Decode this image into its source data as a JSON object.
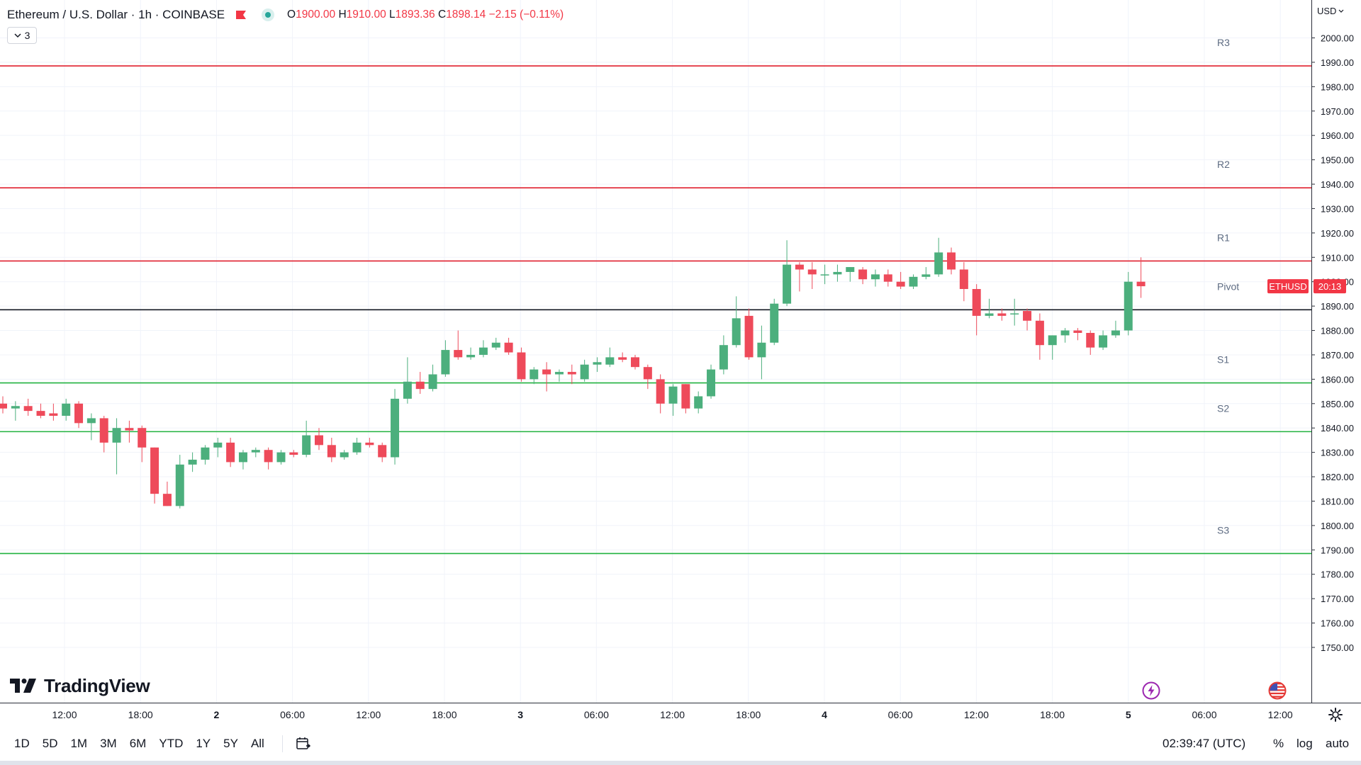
{
  "header": {
    "title": "Ethereum / U.S. Dollar · 1h · COINBASE",
    "ohlc": {
      "open_label": "O",
      "open": "1900.00",
      "high_label": "H",
      "high": "1910.00",
      "low_label": "L",
      "low": "1893.36",
      "close_label": "C",
      "close": "1898.14",
      "change": "−2.15 (−0.11%)"
    },
    "indicator_count": "3"
  },
  "price_scale": {
    "currency": "USD",
    "symbol_tag": "ETHUSD",
    "countdown": "20:13",
    "last_price": 1898.14
  },
  "pivot_labels": [
    {
      "label": "R3",
      "value": 1988.5
    },
    {
      "label": "R2",
      "value": 1938.5
    },
    {
      "label": "R1",
      "value": 1908.5
    },
    {
      "label": "Pivot",
      "value": 1888.5
    },
    {
      "label": "S1",
      "value": 1858.5
    },
    {
      "label": "S2",
      "value": 1838.5
    },
    {
      "label": "S3",
      "value": 1788.5
    }
  ],
  "time_scale_labels": [
    "12:00",
    "18:00",
    "2",
    "06:00",
    "12:00",
    "18:00",
    "3",
    "06:00",
    "12:00",
    "18:00",
    "4",
    "06:00",
    "12:00",
    "18:00",
    "5",
    "06:00",
    "12:00"
  ],
  "bottom_bar": {
    "ranges": [
      "1D",
      "5D",
      "1M",
      "3M",
      "6M",
      "YTD",
      "1Y",
      "5Y",
      "All"
    ],
    "clock": "02:39:47 (UTC)",
    "percent": "%",
    "log": "log",
    "auto": "auto"
  },
  "branding": {
    "logo_text": "TradingView"
  },
  "colors": {
    "up": "#4caf7d",
    "down": "#ee4a5a",
    "resistance": "#e0202f",
    "support": "#21b23f",
    "pivot": "#131722",
    "grid": "#f0f3fa",
    "tag": "#f23645"
  },
  "chart_data": {
    "type": "candlestick",
    "title": "Ethereum / U.S. Dollar · 1h · COINBASE",
    "interval": "1h",
    "ylim": [
      1745,
      2005
    ],
    "y_ticks": [
      1750,
      1760,
      1770,
      1780,
      1790,
      1800,
      1810,
      1820,
      1830,
      1840,
      1850,
      1860,
      1870,
      1880,
      1890,
      1900,
      1910,
      1920,
      1930,
      1940,
      1950,
      1960,
      1970,
      1980,
      1990,
      2000
    ],
    "grid": true,
    "candles": [
      {
        "o": 1850,
        "h": 1853,
        "l": 1846,
        "c": 1848
      },
      {
        "o": 1848,
        "h": 1851,
        "l": 1843,
        "c": 1849
      },
      {
        "o": 1849,
        "h": 1852,
        "l": 1845,
        "c": 1847
      },
      {
        "o": 1847,
        "h": 1850,
        "l": 1844,
        "c": 1845
      },
      {
        "o": 1846,
        "h": 1850,
        "l": 1843,
        "c": 1845
      },
      {
        "o": 1845,
        "h": 1852,
        "l": 1843,
        "c": 1850
      },
      {
        "o": 1850,
        "h": 1851,
        "l": 1840,
        "c": 1842
      },
      {
        "o": 1842,
        "h": 1846,
        "l": 1835,
        "c": 1844
      },
      {
        "o": 1844,
        "h": 1845,
        "l": 1830,
        "c": 1834
      },
      {
        "o": 1834,
        "h": 1844,
        "l": 1821,
        "c": 1840
      },
      {
        "o": 1840,
        "h": 1843,
        "l": 1834,
        "c": 1839
      },
      {
        "o": 1840,
        "h": 1841,
        "l": 1826,
        "c": 1832
      },
      {
        "o": 1832,
        "h": 1832,
        "l": 1809,
        "c": 1813
      },
      {
        "o": 1813,
        "h": 1818,
        "l": 1808,
        "c": 1808
      },
      {
        "o": 1808,
        "h": 1829,
        "l": 1807,
        "c": 1825
      },
      {
        "o": 1825,
        "h": 1830,
        "l": 1822,
        "c": 1827
      },
      {
        "o": 1827,
        "h": 1833,
        "l": 1825,
        "c": 1832
      },
      {
        "o": 1832,
        "h": 1836,
        "l": 1828,
        "c": 1834
      },
      {
        "o": 1834,
        "h": 1836,
        "l": 1824,
        "c": 1826
      },
      {
        "o": 1826,
        "h": 1831,
        "l": 1823,
        "c": 1830
      },
      {
        "o": 1830,
        "h": 1832,
        "l": 1828,
        "c": 1831
      },
      {
        "o": 1831,
        "h": 1832,
        "l": 1823,
        "c": 1826
      },
      {
        "o": 1826,
        "h": 1831,
        "l": 1825,
        "c": 1830
      },
      {
        "o": 1830,
        "h": 1831,
        "l": 1828,
        "c": 1829
      },
      {
        "o": 1829,
        "h": 1843,
        "l": 1828,
        "c": 1837
      },
      {
        "o": 1837,
        "h": 1840,
        "l": 1831,
        "c": 1833
      },
      {
        "o": 1833,
        "h": 1836,
        "l": 1826,
        "c": 1828
      },
      {
        "o": 1828,
        "h": 1831,
        "l": 1827,
        "c": 1830
      },
      {
        "o": 1830,
        "h": 1836,
        "l": 1829,
        "c": 1834
      },
      {
        "o": 1834,
        "h": 1836,
        "l": 1832,
        "c": 1833
      },
      {
        "o": 1833,
        "h": 1834,
        "l": 1826,
        "c": 1828
      },
      {
        "o": 1828,
        "h": 1856,
        "l": 1825,
        "c": 1852
      },
      {
        "o": 1852,
        "h": 1869,
        "l": 1850,
        "c": 1859
      },
      {
        "o": 1859,
        "h": 1863,
        "l": 1854,
        "c": 1856
      },
      {
        "o": 1856,
        "h": 1866,
        "l": 1855,
        "c": 1862
      },
      {
        "o": 1862,
        "h": 1876,
        "l": 1861,
        "c": 1872
      },
      {
        "o": 1872,
        "h": 1880,
        "l": 1868,
        "c": 1869
      },
      {
        "o": 1869,
        "h": 1873,
        "l": 1868,
        "c": 1870
      },
      {
        "o": 1870,
        "h": 1876,
        "l": 1869,
        "c": 1873
      },
      {
        "o": 1873,
        "h": 1877,
        "l": 1872,
        "c": 1875
      },
      {
        "o": 1875,
        "h": 1877,
        "l": 1870,
        "c": 1871
      },
      {
        "o": 1871,
        "h": 1873,
        "l": 1859,
        "c": 1860
      },
      {
        "o": 1860,
        "h": 1865,
        "l": 1858,
        "c": 1864
      },
      {
        "o": 1864,
        "h": 1867,
        "l": 1855,
        "c": 1862
      },
      {
        "o": 1862,
        "h": 1864,
        "l": 1859,
        "c": 1863
      },
      {
        "o": 1863,
        "h": 1866,
        "l": 1858,
        "c": 1862
      },
      {
        "o": 1860,
        "h": 1868,
        "l": 1859,
        "c": 1866
      },
      {
        "o": 1866,
        "h": 1869,
        "l": 1863,
        "c": 1867
      },
      {
        "o": 1866,
        "h": 1873,
        "l": 1865,
        "c": 1869
      },
      {
        "o": 1869,
        "h": 1871,
        "l": 1867,
        "c": 1868
      },
      {
        "o": 1869,
        "h": 1870,
        "l": 1864,
        "c": 1865
      },
      {
        "o": 1865,
        "h": 1866,
        "l": 1856,
        "c": 1860
      },
      {
        "o": 1860,
        "h": 1862,
        "l": 1846,
        "c": 1850
      },
      {
        "o": 1850,
        "h": 1858,
        "l": 1845,
        "c": 1857
      },
      {
        "o": 1858,
        "h": 1858,
        "l": 1846,
        "c": 1848
      },
      {
        "o": 1848,
        "h": 1855,
        "l": 1846,
        "c": 1853
      },
      {
        "o": 1853,
        "h": 1866,
        "l": 1852,
        "c": 1864
      },
      {
        "o": 1864,
        "h": 1878,
        "l": 1862,
        "c": 1874
      },
      {
        "o": 1874,
        "h": 1894,
        "l": 1873,
        "c": 1885
      },
      {
        "o": 1886,
        "h": 1889,
        "l": 1868,
        "c": 1869
      },
      {
        "o": 1869,
        "h": 1882,
        "l": 1860,
        "c": 1875
      },
      {
        "o": 1875,
        "h": 1893,
        "l": 1874,
        "c": 1891
      },
      {
        "o": 1891,
        "h": 1917,
        "l": 1890,
        "c": 1907
      },
      {
        "o": 1907,
        "h": 1908,
        "l": 1896,
        "c": 1905
      },
      {
        "o": 1905,
        "h": 1908,
        "l": 1897,
        "c": 1903
      },
      {
        "o": 1903,
        "h": 1907,
        "l": 1899,
        "c": 1903
      },
      {
        "o": 1903,
        "h": 1907,
        "l": 1900,
        "c": 1904
      },
      {
        "o": 1904,
        "h": 1906,
        "l": 1900,
        "c": 1906
      },
      {
        "o": 1905,
        "h": 1906,
        "l": 1899,
        "c": 1901
      },
      {
        "o": 1901,
        "h": 1905,
        "l": 1898,
        "c": 1903
      },
      {
        "o": 1903,
        "h": 1905,
        "l": 1898,
        "c": 1900
      },
      {
        "o": 1900,
        "h": 1904,
        "l": 1897,
        "c": 1898
      },
      {
        "o": 1898,
        "h": 1903,
        "l": 1897,
        "c": 1902
      },
      {
        "o": 1902,
        "h": 1906,
        "l": 1901,
        "c": 1903
      },
      {
        "o": 1903,
        "h": 1918,
        "l": 1902,
        "c": 1912
      },
      {
        "o": 1912,
        "h": 1914,
        "l": 1903,
        "c": 1905
      },
      {
        "o": 1905,
        "h": 1908,
        "l": 1892,
        "c": 1897
      },
      {
        "o": 1897,
        "h": 1899,
        "l": 1878,
        "c": 1886
      },
      {
        "o": 1886,
        "h": 1893,
        "l": 1885,
        "c": 1887
      },
      {
        "o": 1887,
        "h": 1889,
        "l": 1884,
        "c": 1886
      },
      {
        "o": 1887,
        "h": 1893,
        "l": 1882,
        "c": 1887
      },
      {
        "o": 1888,
        "h": 1889,
        "l": 1880,
        "c": 1884
      },
      {
        "o": 1884,
        "h": 1887,
        "l": 1868,
        "c": 1874
      },
      {
        "o": 1874,
        "h": 1878,
        "l": 1868,
        "c": 1878
      },
      {
        "o": 1878,
        "h": 1881,
        "l": 1875,
        "c": 1880
      },
      {
        "o": 1880,
        "h": 1881,
        "l": 1876,
        "c": 1879
      },
      {
        "o": 1879,
        "h": 1880,
        "l": 1870,
        "c": 1873
      },
      {
        "o": 1873,
        "h": 1880,
        "l": 1872,
        "c": 1878
      },
      {
        "o": 1878,
        "h": 1884,
        "l": 1877,
        "c": 1880
      },
      {
        "o": 1880,
        "h": 1904,
        "l": 1878,
        "c": 1900
      },
      {
        "o": 1900,
        "h": 1910,
        "l": 1893.36,
        "c": 1898.14
      }
    ]
  }
}
